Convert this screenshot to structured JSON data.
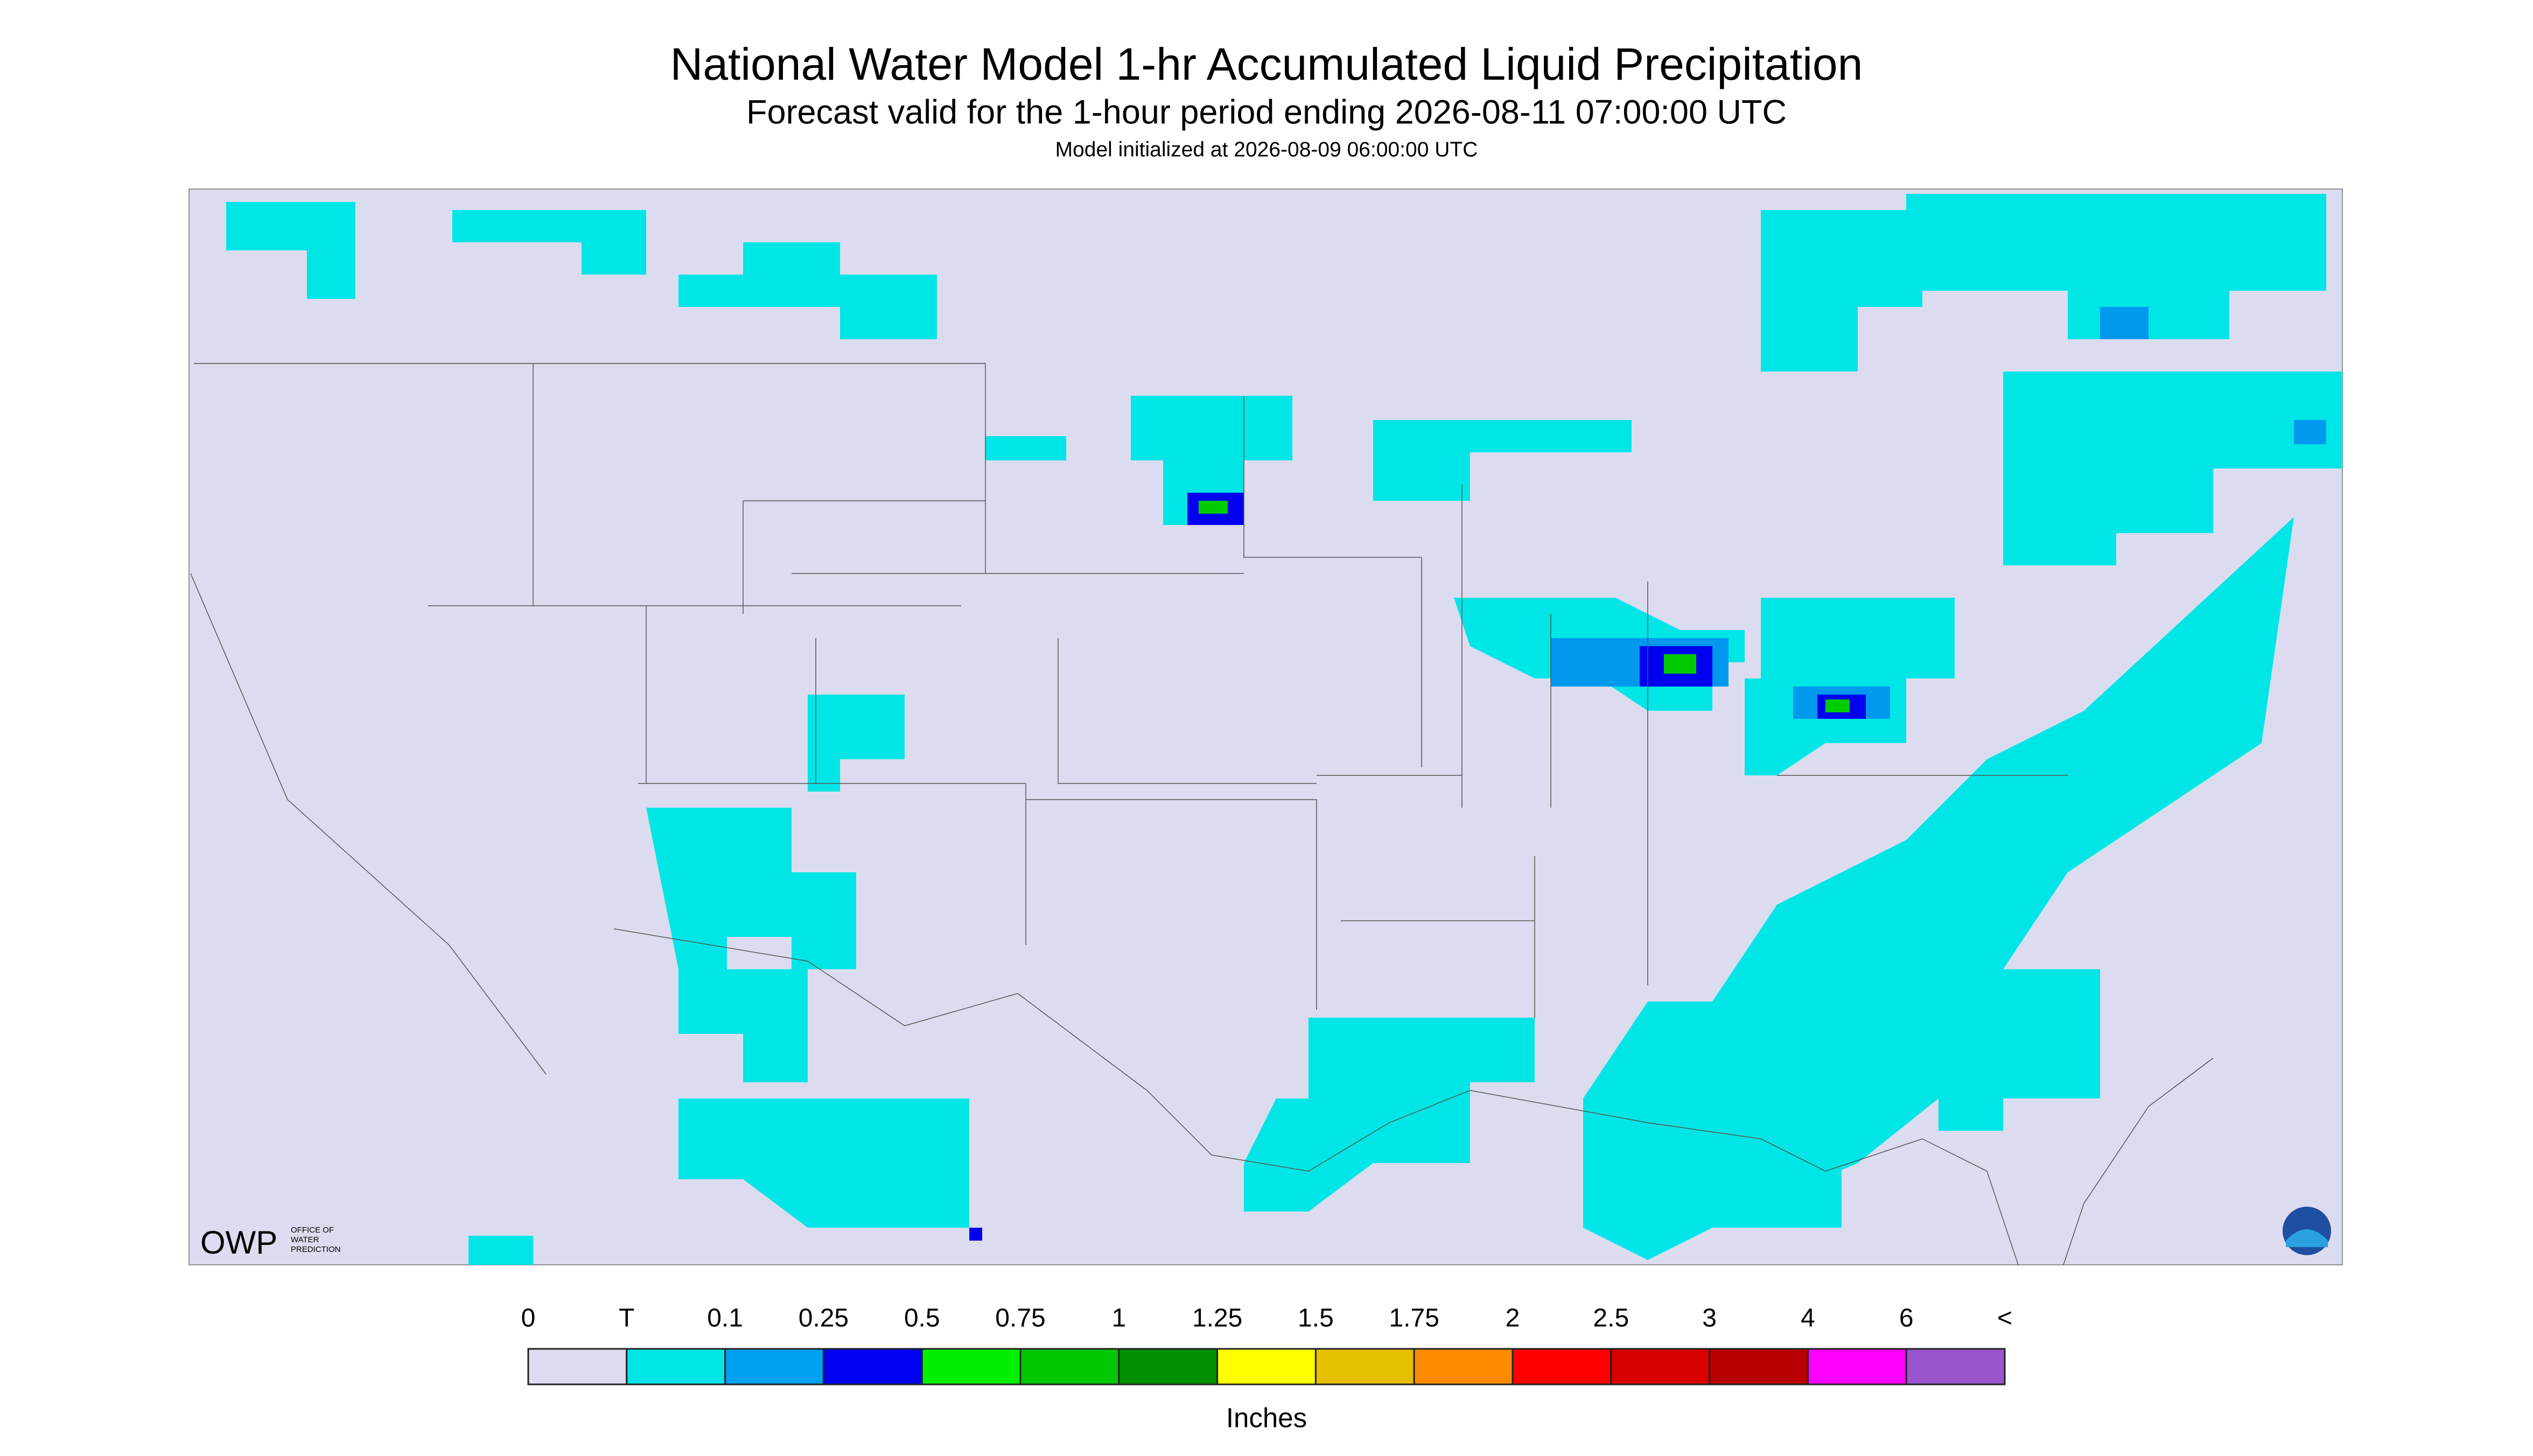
{
  "header": {
    "title": "National Water Model 1-hr Accumulated Liquid Precipitation",
    "subtitle": "Forecast valid for the 1-hour period ending 2026-08-11 07:00:00 UTC",
    "init": "Model initialized at 2026-08-09 06:00:00 UTC"
  },
  "legend": {
    "labels": [
      "0",
      "T",
      "0.1",
      "0.25",
      "0.5",
      "0.75",
      "1",
      "1.25",
      "1.5",
      "1.75",
      "2",
      "2.5",
      "3",
      "4",
      "6",
      "<"
    ],
    "colors": [
      "#dcdcf0",
      "#00e6e6",
      "#00a0f0",
      "#0000f0",
      "#00f000",
      "#00c800",
      "#009000",
      "#ffff00",
      "#e6bf00",
      "#ff8c00",
      "#ff0000",
      "#d80000",
      "#b80000",
      "#ff00ff",
      "#9955cc"
    ],
    "unit": "Inches"
  },
  "logos": {
    "owp": "OWP",
    "owp_text_1": "OFFICE OF",
    "owp_text_2": "WATER",
    "owp_text_3": "PREDICTION"
  }
}
